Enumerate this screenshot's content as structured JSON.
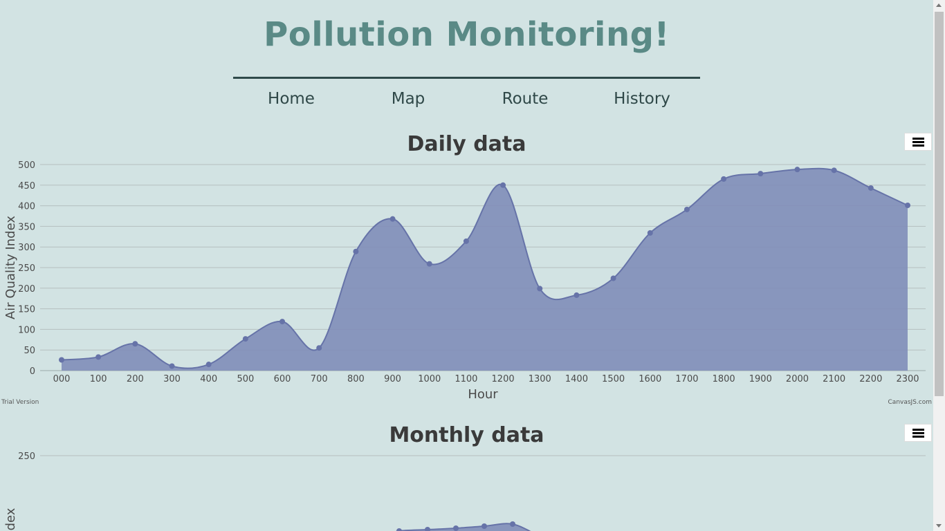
{
  "site": {
    "title": "Pollution Monitoring!"
  },
  "nav": {
    "items": [
      {
        "label": "Home"
      },
      {
        "label": "Map"
      },
      {
        "label": "Route"
      },
      {
        "label": "History"
      }
    ]
  },
  "daily": {
    "credit_left": "Trial Version",
    "credit_right": "CanvasJS.com"
  },
  "monthly": {},
  "colors": {
    "background": "#d2e3e3",
    "title": "#5a8a86",
    "area_fill": "#7f8db8",
    "area_line": "#6673a8",
    "grid": "#b5bfbf"
  },
  "icons": {
    "chart_menu": "hamburger-icon"
  },
  "chart_data": [
    {
      "type": "area",
      "title": "Daily data",
      "xlabel": "Hour",
      "ylabel": "Air Quality Index",
      "ylim": [
        0,
        500
      ],
      "yticks": [
        "0",
        "50",
        "100",
        "150",
        "200",
        "250",
        "300",
        "350",
        "400",
        "450",
        "500"
      ],
      "categories": [
        "000",
        "100",
        "200",
        "300",
        "400",
        "500",
        "600",
        "700",
        "800",
        "900",
        "1000",
        "1100",
        "1200",
        "1300",
        "1400",
        "1500",
        "1600",
        "1700",
        "1800",
        "1900",
        "2000",
        "2100",
        "2200",
        "2300"
      ],
      "values": [
        26,
        33,
        65,
        11,
        15,
        77,
        119,
        55,
        289,
        368,
        259,
        314,
        450,
        199,
        183,
        224,
        334,
        391,
        465,
        478,
        488,
        486,
        443,
        401
      ],
      "grid": true,
      "legend": "none"
    },
    {
      "type": "area",
      "title": "Monthly data",
      "xlabel": "",
      "ylabel": "dex",
      "yticks": [
        "250"
      ],
      "values_visible": "partially cut off at bottom of viewport",
      "grid": true,
      "legend": "none"
    }
  ]
}
